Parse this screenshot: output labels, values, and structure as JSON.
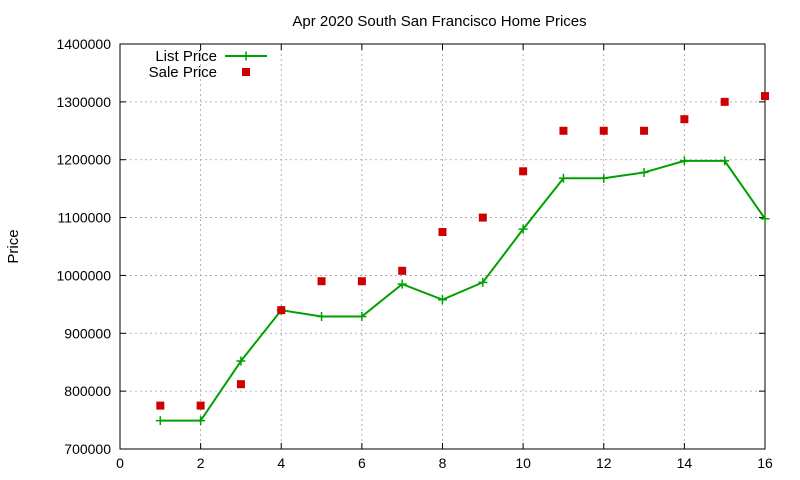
{
  "chart_data": {
    "type": "line",
    "title": "Apr 2020 South San Francisco Home Prices",
    "xlabel": "",
    "ylabel": "Price",
    "xlim": [
      0,
      16
    ],
    "ylim": [
      700000,
      1400000
    ],
    "xticks": [
      "0",
      "2",
      "4",
      "6",
      "8",
      "10",
      "12",
      "14",
      "16"
    ],
    "yticks": [
      "700000",
      "800000",
      "900000",
      "1000000",
      "1100000",
      "1200000",
      "1300000",
      "1400000"
    ],
    "grid": true,
    "legend_position": "top-left",
    "x": [
      1,
      2,
      3,
      4,
      5,
      6,
      7,
      8,
      9,
      10,
      11,
      12,
      13,
      14,
      15,
      16
    ],
    "series": [
      {
        "name": "List Price",
        "style": "line-with-plus-markers",
        "color": "#00a000",
        "values": [
          749000,
          749000,
          852000,
          940000,
          929000,
          929000,
          985000,
          958000,
          988000,
          1080000,
          1168000,
          1168000,
          1178000,
          1198000,
          1198000,
          1098000
        ]
      },
      {
        "name": "Sale Price",
        "style": "square-markers",
        "color": "#cc0000",
        "values": [
          775000,
          775000,
          812000,
          940000,
          990000,
          990000,
          1008000,
          1075000,
          1100000,
          1180000,
          1250000,
          1250000,
          1250000,
          1270000,
          1300000,
          1310000
        ]
      }
    ]
  }
}
